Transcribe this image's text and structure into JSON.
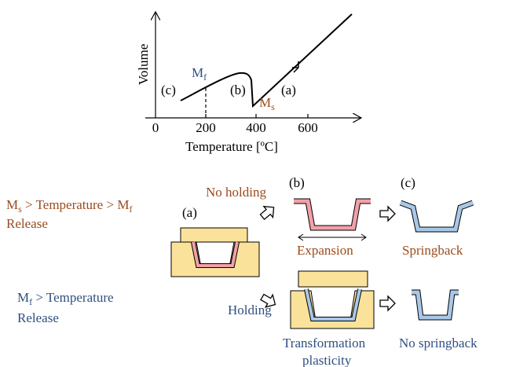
{
  "graph": {
    "y_label": "Volume",
    "x_label": "Temperature [ºC]",
    "x_ticks": [
      "0",
      "200",
      "400",
      "600"
    ],
    "curve_labels": {
      "c": "(c)",
      "b": "(b)",
      "a": "(a)",
      "mf": [
        "M",
        "f"
      ],
      "ms": [
        "M",
        "s"
      ]
    }
  },
  "conditions": [
    {
      "line1": [
        "M",
        "s",
        " > Temperature > ",
        "M",
        "f"
      ],
      "line2": "Release"
    },
    {
      "line1": [
        "M",
        "f",
        " > Temperature"
      ],
      "line2": "Release"
    }
  ],
  "steps": {
    "a": "(a)",
    "no_holding": "No holding",
    "holding": "Holding",
    "b": "(b)",
    "c": "(c)",
    "expansion": "Expansion",
    "springback": "Springback",
    "transformation": [
      "Transformation",
      "plasticity"
    ],
    "no_springback": "No springback"
  }
}
